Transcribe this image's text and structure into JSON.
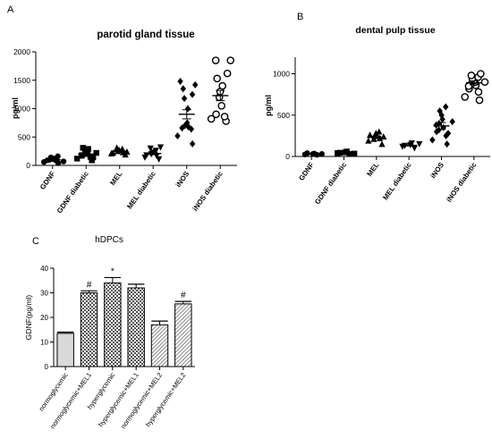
{
  "chart_data": [
    {
      "panel": "A",
      "type": "scatter",
      "title": "parotid gland tissue",
      "ylabel": "pg/ml",
      "ylim": [
        0,
        2000
      ],
      "yticks": [
        0,
        500,
        1000,
        1500,
        2000
      ],
      "categories": [
        "GDNF",
        "GDNF diabetic",
        "MEL",
        "MEL diabetic",
        "iNOS",
        "iNOS diabetic"
      ],
      "markers": [
        "circle",
        "square",
        "triangle",
        "triangle-down",
        "diamond",
        "circle-open"
      ],
      "points": [
        [
          40,
          60,
          80,
          100,
          110,
          120,
          140,
          160,
          90,
          70
        ],
        [
          90,
          120,
          150,
          180,
          200,
          230,
          260,
          290,
          310,
          140,
          170,
          220
        ],
        [
          190,
          210,
          230,
          250,
          270,
          290,
          310,
          240,
          220
        ],
        [
          110,
          140,
          170,
          200,
          230,
          260,
          300,
          320,
          180
        ],
        [
          380,
          520,
          640,
          660,
          680,
          700,
          750,
          1000,
          1180,
          1250,
          1350,
          1420,
          1480
        ],
        [
          780,
          820,
          860,
          900,
          1050,
          1200,
          1300,
          1400,
          1530,
          1620,
          1850,
          1850
        ]
      ],
      "means": [
        100,
        200,
        250,
        210,
        900,
        1230
      ],
      "errors": [
        12,
        20,
        12,
        20,
        80,
        90
      ]
    },
    {
      "panel": "B",
      "type": "scatter",
      "title": "dental pulp tissue",
      "ylabel": "pg/ml",
      "ylim": [
        0,
        1200
      ],
      "yticks": [
        0,
        500,
        1000
      ],
      "categories": [
        "GDNF",
        "GDNF diabetic",
        "MEL",
        "MEL diabetic",
        "iNOS",
        "iNOS diabetic"
      ],
      "markers": [
        "circle",
        "square",
        "triangle",
        "triangle-down",
        "diamond",
        "circle-open"
      ],
      "points": [
        [
          20,
          25,
          30,
          35,
          40,
          30
        ],
        [
          30,
          40,
          50,
          60,
          45,
          35
        ],
        [
          150,
          190,
          220,
          250,
          280,
          300,
          210,
          240,
          260
        ],
        [
          100,
          120,
          140,
          160,
          130,
          150
        ],
        [
          150,
          200,
          250,
          300,
          350,
          400,
          450,
          500,
          550,
          600,
          320,
          280,
          380,
          420
        ],
        [
          680,
          720,
          780,
          820,
          860,
          880,
          900,
          920,
          940,
          960,
          980,
          1000,
          850,
          900
        ]
      ],
      "means": [
        30,
        45,
        230,
        135,
        370,
        890
      ],
      "errors": [
        4,
        5,
        15,
        8,
        40,
        25
      ]
    },
    {
      "panel": "C",
      "type": "bar",
      "title": "hDPCs",
      "ylabel": "GDNF(pg/ml)",
      "ylim": [
        0,
        40
      ],
      "yticks": [
        0,
        10,
        20,
        30,
        40
      ],
      "categories": [
        "normoglycemic",
        "normoglycemic+MEL1",
        "hyperglycemic",
        "hyperglycemic+MEL1",
        "normoglycemic+MEL2",
        "hyperglycemic+MEL2"
      ],
      "values": [
        13.5,
        30,
        34,
        32,
        17,
        25.5
      ],
      "errors": [
        0.5,
        0.8,
        2.2,
        1.5,
        1.5,
        1
      ],
      "annotations": [
        "",
        "#",
        "*",
        "",
        "",
        "#"
      ],
      "fills": [
        "#d9d9d9",
        "#9a9a9a",
        "#b0b0b0",
        "#b0b0b0",
        "#c6c6c6",
        "#8a8a8a"
      ]
    }
  ]
}
